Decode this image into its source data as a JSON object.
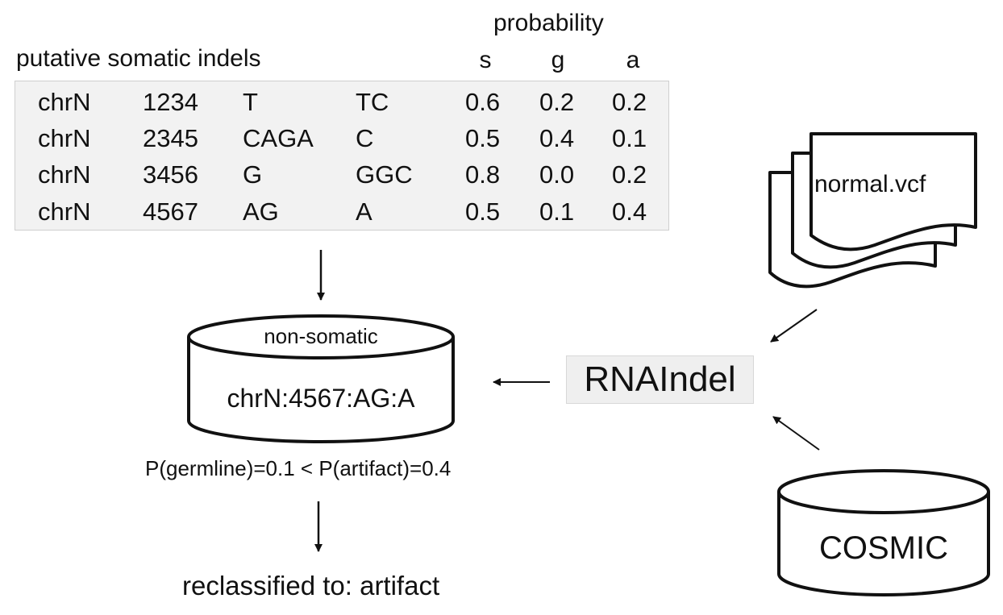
{
  "table": {
    "title": "putative somatic indels",
    "probability_header": "probability",
    "prob_columns": [
      "s",
      "g",
      "a"
    ],
    "rows": [
      {
        "chrom": "chrN",
        "pos": "1234",
        "ref": "T",
        "alt": "TC",
        "s": "0.6",
        "g": "0.2",
        "a": "0.2"
      },
      {
        "chrom": "chrN",
        "pos": "2345",
        "ref": "CAGA",
        "alt": "C",
        "s": "0.5",
        "g": "0.4",
        "a": "0.1"
      },
      {
        "chrom": "chrN",
        "pos": "3456",
        "ref": "G",
        "alt": "GGC",
        "s": "0.8",
        "g": "0.0",
        "a": "0.2"
      },
      {
        "chrom": "chrN",
        "pos": "4567",
        "ref": "AG",
        "alt": "A",
        "s": "0.5",
        "g": "0.1",
        "a": "0.4"
      }
    ]
  },
  "database": {
    "title": "non-somatic",
    "entry": "chrN:4567:AG:A"
  },
  "comparison": "P(germline)=0.1 <  P(artifact)=0.4",
  "result": "reclassified to: artifact",
  "tool": "RNAIndel",
  "inputs": {
    "vcf": "normal.vcf",
    "cosmic": "COSMIC"
  }
}
